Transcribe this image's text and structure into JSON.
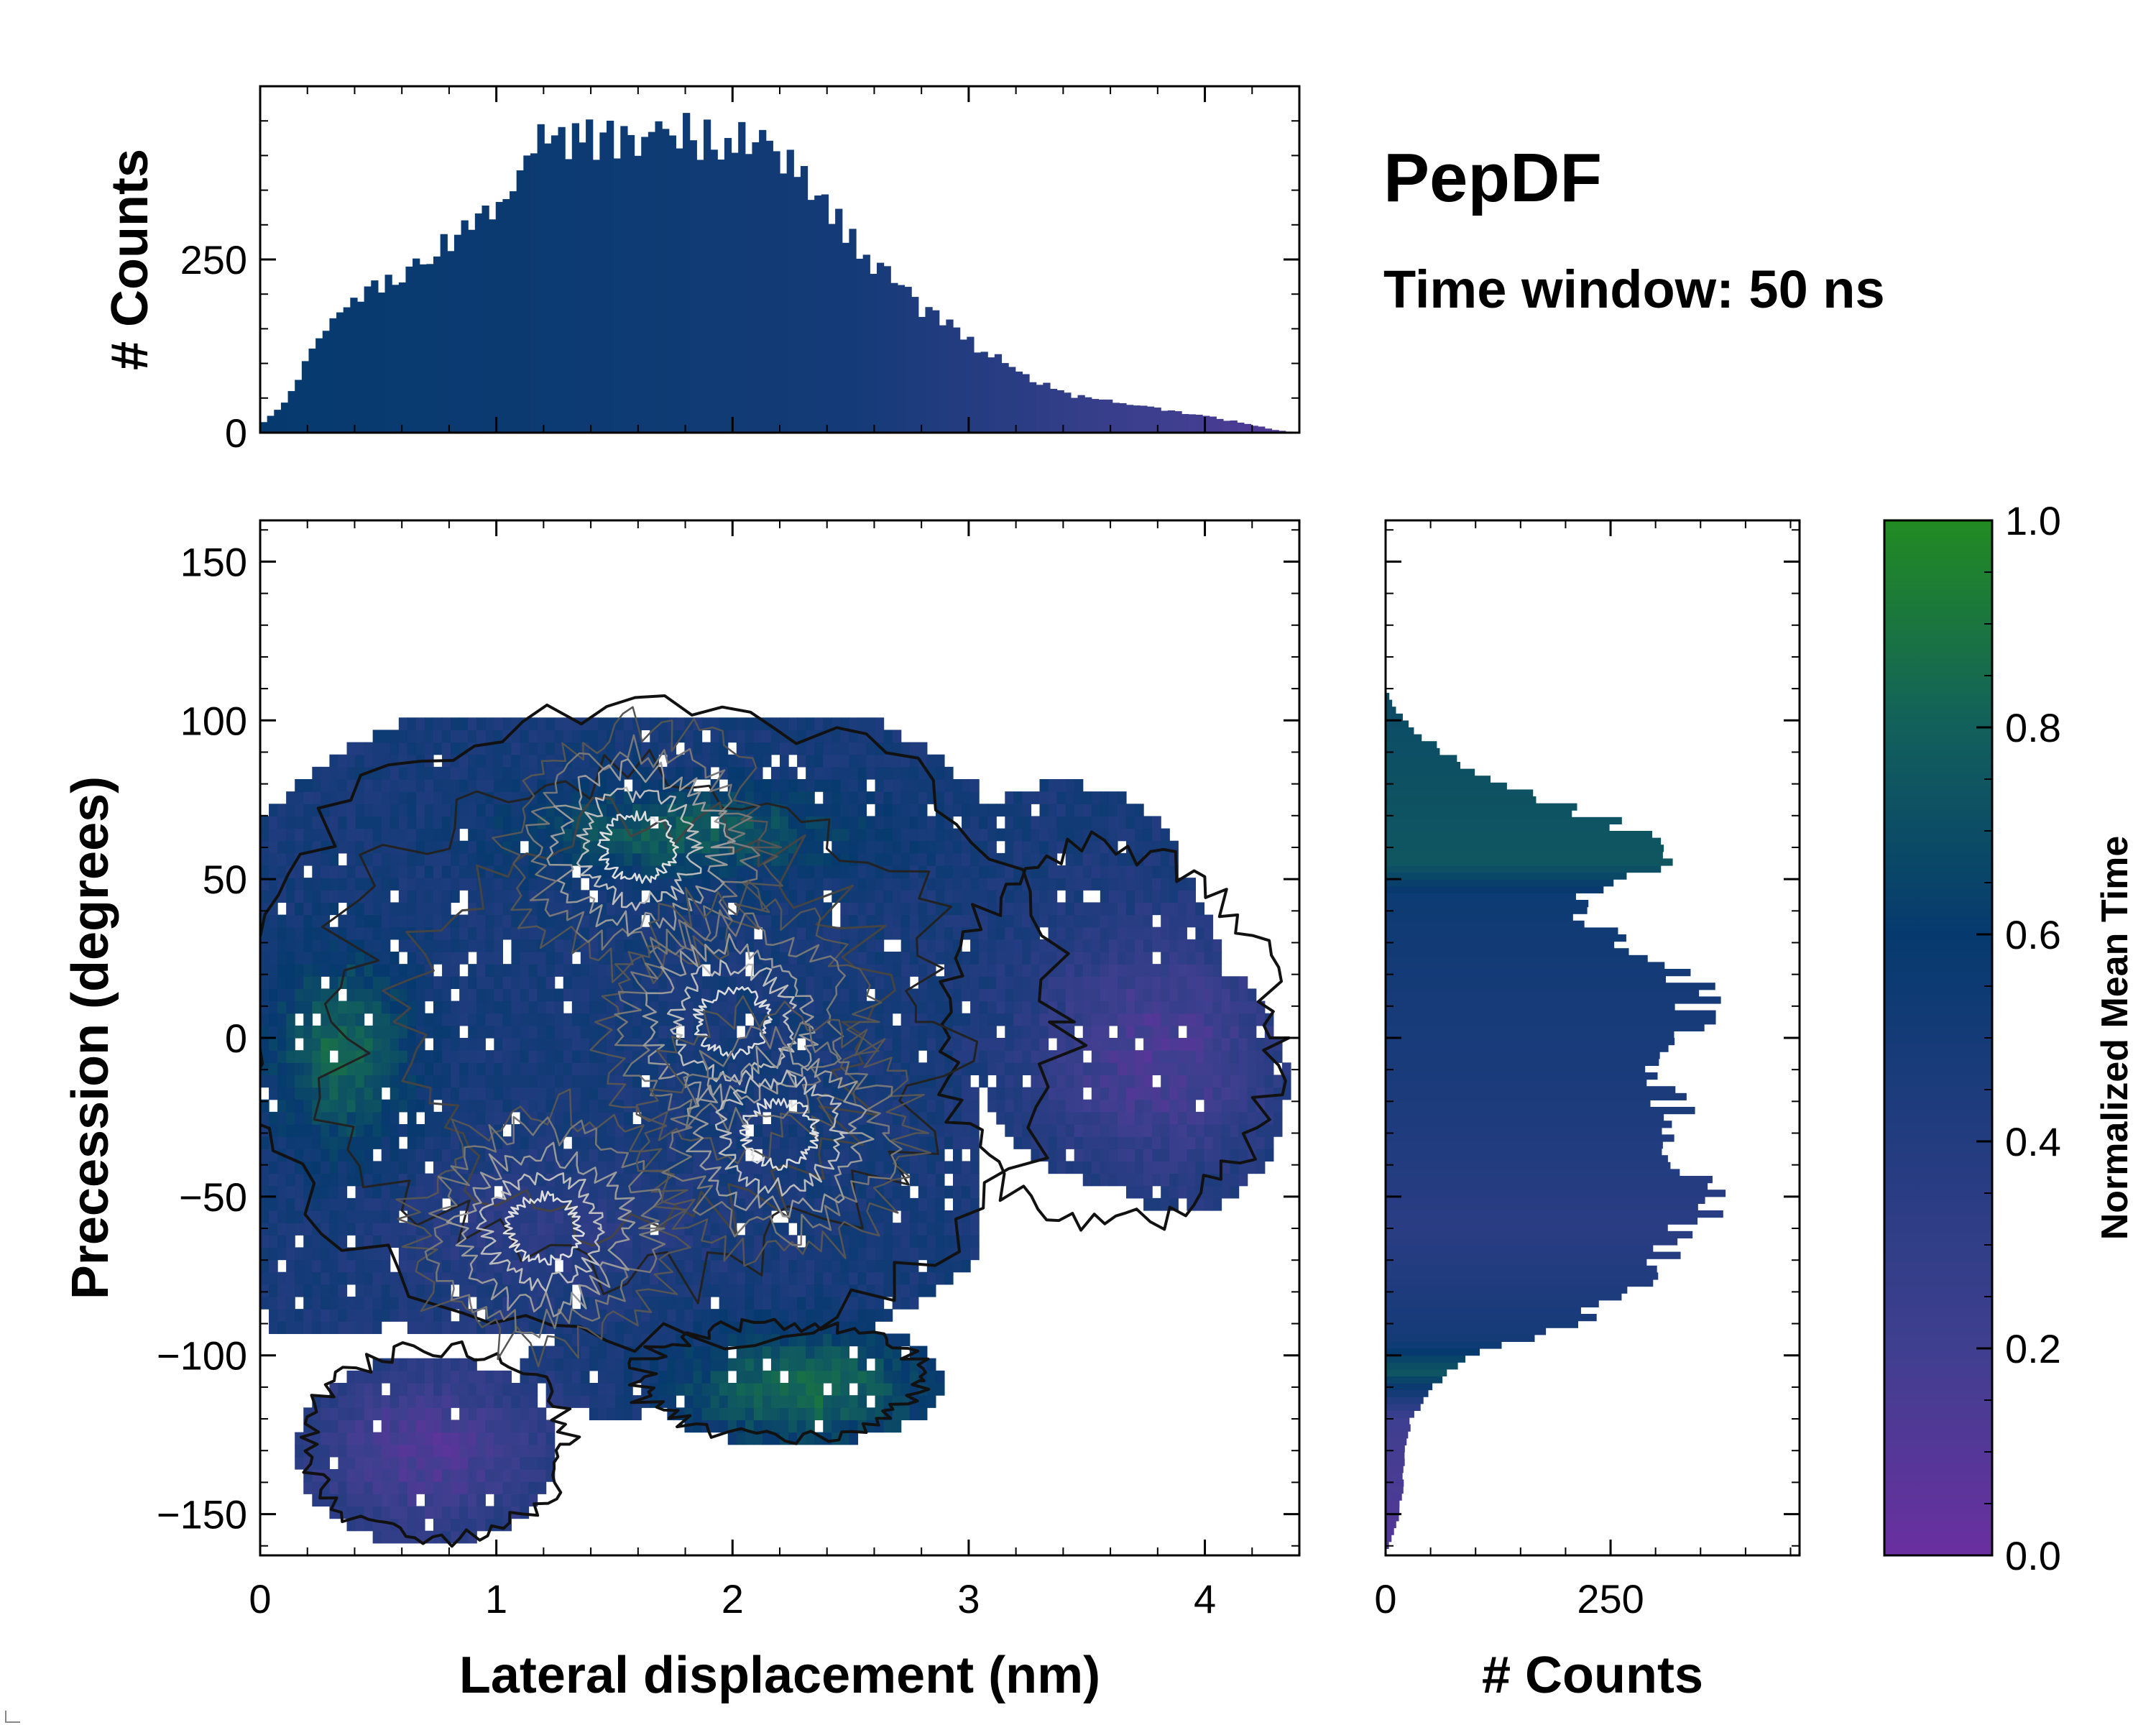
{
  "chart_data": {
    "type": "heatmap",
    "title": "PepDF",
    "subtitle": "Time window: 50 ns",
    "main": {
      "xlabel": "Lateral displacement (nm)",
      "ylabel": "Precession (degrees)",
      "xlim": [
        0,
        4.4
      ],
      "ylim": [
        -163,
        163
      ],
      "xticks": [
        0,
        1,
        2,
        3,
        4
      ],
      "xtick_labels": [
        "0",
        "1",
        "2",
        "3",
        "4"
      ],
      "yticks": [
        -150,
        -100,
        -50,
        0,
        50,
        100,
        150
      ],
      "ytick_labels": [
        "−150",
        "−100",
        "−50",
        "0",
        "50",
        "100",
        "150"
      ],
      "x_bins": 120,
      "y_bins": 84,
      "regions": [
        {
          "name": "main body",
          "x_range": [
            0.0,
            4.3
          ],
          "y_range": [
            -95,
            105
          ],
          "mean_time": 0.5
        },
        {
          "name": "left green lobe",
          "center": [
            0.4,
            -5
          ],
          "mean_time": 0.85
        },
        {
          "name": "upper green band",
          "center": [
            1.8,
            65
          ],
          "mean_time": 0.8
        },
        {
          "name": "lower left purple",
          "center": [
            0.7,
            -130
          ],
          "mean_time": 0.1
        },
        {
          "name": "lower middle green",
          "center": [
            2.3,
            -110
          ],
          "mean_time": 0.85
        },
        {
          "name": "right purple",
          "center": [
            3.8,
            -10
          ],
          "mean_time": 0.15
        }
      ],
      "density_peaks": [
        {
          "x": 1.6,
          "y": 60
        },
        {
          "x": 2.0,
          "y": 5
        },
        {
          "x": 1.2,
          "y": -60
        },
        {
          "x": 2.2,
          "y": -30
        }
      ]
    },
    "top_histogram": {
      "ylabel": "# Counts",
      "ylim": [
        0,
        500
      ],
      "yticks": [
        0,
        250
      ],
      "ytick_labels": [
        "0",
        "250"
      ],
      "bins": 150,
      "profile": [
        [
          0.0,
          10
        ],
        [
          0.1,
          40
        ],
        [
          0.25,
          140
        ],
        [
          0.5,
          210
        ],
        [
          0.75,
          270
        ],
        [
          1.0,
          330
        ],
        [
          1.2,
          420
        ],
        [
          1.5,
          420
        ],
        [
          1.8,
          430
        ],
        [
          2.1,
          420
        ],
        [
          2.3,
          370
        ],
        [
          2.5,
          280
        ],
        [
          2.8,
          180
        ],
        [
          3.1,
          110
        ],
        [
          3.4,
          55
        ],
        [
          3.7,
          40
        ],
        [
          4.0,
          25
        ],
        [
          4.3,
          4
        ],
        [
          4.4,
          0
        ]
      ],
      "color_mean_time": [
        [
          0.0,
          0.6
        ],
        [
          1.5,
          0.55
        ],
        [
          2.5,
          0.5
        ],
        [
          3.2,
          0.35
        ],
        [
          3.6,
          0.25
        ],
        [
          4.4,
          0.1
        ]
      ]
    },
    "right_histogram": {
      "xlabel": "# Counts",
      "xlim": [
        0,
        460
      ],
      "xticks": [
        0,
        250
      ],
      "xtick_labels": [
        "0",
        "250"
      ],
      "bins": 150,
      "profile": [
        [
          -163,
          0
        ],
        [
          -150,
          15
        ],
        [
          -140,
          20
        ],
        [
          -130,
          22
        ],
        [
          -120,
          28
        ],
        [
          -110,
          50
        ],
        [
          -100,
          90
        ],
        [
          -90,
          210
        ],
        [
          -80,
          270
        ],
        [
          -70,
          300
        ],
        [
          -60,
          330
        ],
        [
          -50,
          390
        ],
        [
          -40,
          300
        ],
        [
          -30,
          330
        ],
        [
          -15,
          310
        ],
        [
          -5,
          300
        ],
        [
          5,
          340
        ],
        [
          15,
          350
        ],
        [
          25,
          300
        ],
        [
          35,
          230
        ],
        [
          45,
          210
        ],
        [
          55,
          300
        ],
        [
          65,
          280
        ],
        [
          75,
          180
        ],
        [
          85,
          90
        ],
        [
          95,
          40
        ],
        [
          103,
          12
        ],
        [
          110,
          0
        ],
        [
          163,
          0
        ]
      ],
      "color_mean_time": [
        [
          -163,
          0.1
        ],
        [
          -120,
          0.2
        ],
        [
          -105,
          0.75
        ],
        [
          -95,
          0.5
        ],
        [
          -60,
          0.35
        ],
        [
          -20,
          0.45
        ],
        [
          20,
          0.5
        ],
        [
          45,
          0.55
        ],
        [
          55,
          0.75
        ],
        [
          100,
          0.7
        ],
        [
          163,
          0.7
        ]
      ]
    },
    "colorbar": {
      "label": "Normalized Mean Time",
      "range": [
        0.0,
        1.0
      ],
      "ticks": [
        0.0,
        0.2,
        0.4,
        0.6,
        0.8,
        1.0
      ],
      "tick_labels": [
        "0.0",
        "0.2",
        "0.4",
        "0.6",
        "0.8",
        "1.0"
      ],
      "colormap": [
        "#6a2fa0",
        "#3f3f8f",
        "#233c80",
        "#063a6e",
        "#12605c",
        "#228b22"
      ]
    }
  }
}
